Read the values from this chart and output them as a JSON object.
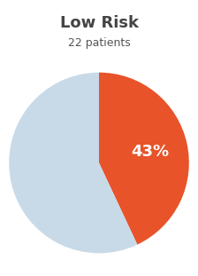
{
  "title": "Low Risk",
  "subtitle": "22 patients",
  "slices": [
    43,
    57
  ],
  "colors": [
    "#E8532A",
    "#C8DAE8"
  ],
  "label": "43%",
  "label_color": "#ffffff",
  "title_color": "#444444",
  "subtitle_color": "#555555",
  "title_fontsize": 13,
  "subtitle_fontsize": 9,
  "label_fontsize": 13,
  "background_color": "#ffffff",
  "figsize": [
    2.24,
    3.11
  ],
  "dpi": 100
}
